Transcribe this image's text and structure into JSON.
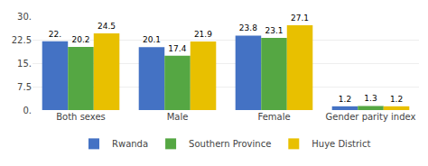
{
  "chart_data": {
    "type": "bar",
    "categories": [
      "Both sexes",
      "Male",
      "Female",
      "Gender parity index"
    ],
    "series": [
      {
        "name": "Rwanda",
        "color": "#4472C4",
        "values": [
          22.0,
          20.1,
          23.8,
          1.2
        ],
        "value_labels": [
          "22.",
          "20.1",
          "23.8",
          "1.2"
        ]
      },
      {
        "name": "Southern Province",
        "color": "#55A743",
        "values": [
          20.2,
          17.4,
          23.1,
          1.3
        ],
        "value_labels": [
          "20.2",
          "17.4",
          "23.1",
          "1.3"
        ]
      },
      {
        "name": "Huye District",
        "color": "#E8C000",
        "values": [
          24.5,
          21.9,
          27.1,
          1.2
        ],
        "value_labels": [
          "24.5",
          "21.9",
          "27.1",
          "1.2"
        ]
      }
    ],
    "ylim": [
      0,
      30
    ],
    "yticks": [
      {
        "value": 0,
        "label": "0."
      },
      7.5,
      {
        "value": 15,
        "label": "15."
      },
      22.5,
      {
        "value": 30,
        "label": "30."
      }
    ],
    "grid": true,
    "legend": "bottom",
    "data_labels": true
  }
}
